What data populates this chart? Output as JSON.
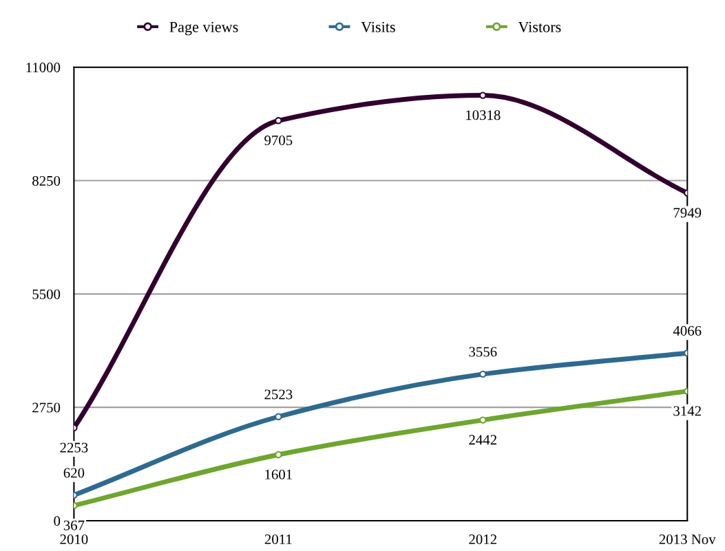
{
  "chart_data": {
    "type": "line",
    "categories": [
      "2010",
      "2011",
      "2012",
      "2013 Nov"
    ],
    "series": [
      {
        "name": "Page views",
        "color": "#32002f",
        "values": [
          2253,
          9705,
          10318,
          7949
        ]
      },
      {
        "name": "Visits",
        "color": "#2e6a90",
        "values": [
          620,
          2523,
          3556,
          4066
        ]
      },
      {
        "name": "Vistors",
        "color": "#6ea62e",
        "values": [
          367,
          1601,
          2442,
          3142
        ]
      }
    ],
    "ylim": [
      0,
      11000
    ],
    "yticks": [
      0,
      2750,
      5500,
      8250,
      11000
    ],
    "grid": "y",
    "legend": "top",
    "marker": "circle",
    "line_style": "solid",
    "data_labels": true
  }
}
